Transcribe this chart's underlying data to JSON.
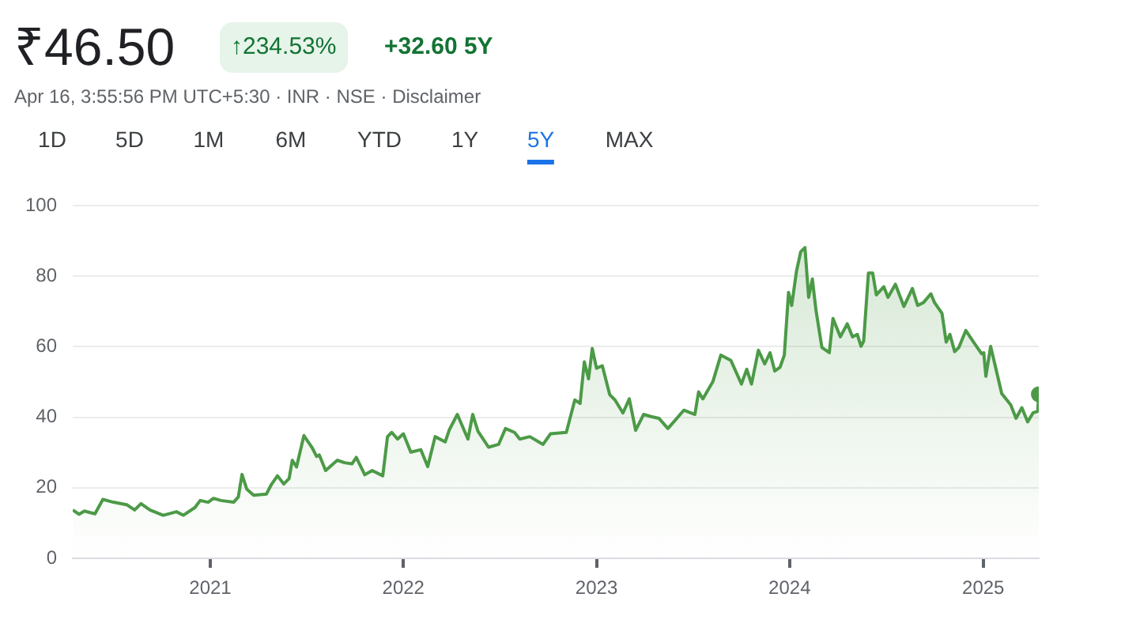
{
  "chart_data": {
    "type": "area",
    "title": "₹46.50",
    "subtitle": "Apr 16, 3:55:56 PM UTC+5:30 · INR · NSE · Disclaimer",
    "annotations": [
      "↑234.53%",
      "+32.60 5Y",
      "1D",
      "5D",
      "1M",
      "6M",
      "YTD",
      "1Y",
      "5Y",
      "MAX"
    ],
    "x": [
      "2020-04-16",
      "2020-04-28",
      "2020-05-08",
      "2020-05-28",
      "2020-06-12",
      "2020-07-02",
      "2020-07-27",
      "2020-08-11",
      "2020-08-23",
      "2020-09-09",
      "2020-10-04",
      "2020-10-29",
      "2020-11-11",
      "2020-12-03",
      "2020-12-13",
      "2020-12-28",
      "2021-01-07",
      "2021-01-21",
      "2021-02-14",
      "2021-02-23",
      "2021-03-02",
      "2021-03-11",
      "2021-03-24",
      "2021-04-17",
      "2021-04-26",
      "2021-05-08",
      "2021-05-20",
      "2021-05-30",
      "2021-06-05",
      "2021-06-13",
      "2021-06-27",
      "2021-07-12",
      "2021-07-21",
      "2021-07-26",
      "2021-08-07",
      "2021-08-29",
      "2021-09-12",
      "2021-09-26",
      "2021-10-04",
      "2021-10-20",
      "2021-11-03",
      "2021-11-23",
      "2021-12-02",
      "2021-12-10",
      "2021-12-21",
      "2022-01-01",
      "2022-01-15",
      "2022-02-03",
      "2022-02-16",
      "2022-03-02",
      "2022-03-21",
      "2022-03-29",
      "2022-04-13",
      "2022-05-03",
      "2022-05-12",
      "2022-05-22",
      "2022-06-11",
      "2022-06-30",
      "2022-07-13",
      "2022-07-30",
      "2022-08-09",
      "2022-08-28",
      "2022-09-22",
      "2022-10-06",
      "2022-11-05",
      "2022-11-21",
      "2022-12-01",
      "2022-12-09",
      "2022-12-17",
      "2022-12-24",
      "2023-01-01",
      "2023-01-12",
      "2023-01-26",
      "2023-02-05",
      "2023-02-20",
      "2023-03-04",
      "2023-03-16",
      "2023-03-31",
      "2023-04-14",
      "2023-04-29",
      "2023-05-16",
      "2023-06-02",
      "2023-06-15",
      "2023-07-06",
      "2023-07-13",
      "2023-07-21",
      "2023-08-09",
      "2023-08-24",
      "2023-09-12",
      "2023-10-02",
      "2023-10-12",
      "2023-10-21",
      "2023-11-03",
      "2023-11-15",
      "2023-11-25",
      "2023-12-04",
      "2023-12-14",
      "2023-12-22",
      "2023-12-30",
      "2024-01-05",
      "2024-01-14",
      "2024-01-22",
      "2024-01-30",
      "2024-02-06",
      "2024-02-13",
      "2024-02-20",
      "2024-03-02",
      "2024-03-16",
      "2024-03-23",
      "2024-04-06",
      "2024-04-19",
      "2024-04-29",
      "2024-05-08",
      "2024-05-15",
      "2024-05-20",
      "2024-05-29",
      "2024-06-06",
      "2024-06-13",
      "2024-06-27",
      "2024-07-05",
      "2024-07-19",
      "2024-08-04",
      "2024-08-20",
      "2024-08-30",
      "2024-09-10",
      "2024-09-24",
      "2024-10-01",
      "2024-10-15",
      "2024-10-23",
      "2024-10-30",
      "2024-11-08",
      "2024-11-16",
      "2024-11-29",
      "2024-12-15",
      "2024-12-29",
      "2025-01-02",
      "2025-01-06",
      "2025-01-15",
      "2025-01-26",
      "2025-02-05",
      "2025-02-22",
      "2025-03-04",
      "2025-03-15",
      "2025-03-26",
      "2025-04-05",
      "2025-04-14",
      "2025-04-16"
    ],
    "series": [
      {
        "color": "#4c9a47",
        "values": [
          13.7,
          12.5,
          13.4,
          12.6,
          16.7,
          15.9,
          15.2,
          13.7,
          15.5,
          13.7,
          12.2,
          13.2,
          12.2,
          14.4,
          16.4,
          15.9,
          17.0,
          16.4,
          15.9,
          17.4,
          23.8,
          19.6,
          17.9,
          18.2,
          20.8,
          23.4,
          21.1,
          22.6,
          27.8,
          25.9,
          34.8,
          31.5,
          28.9,
          29.3,
          24.9,
          27.8,
          27.1,
          26.8,
          28.6,
          23.7,
          24.9,
          23.4,
          34.5,
          35.7,
          33.8,
          35.3,
          30.1,
          30.8,
          26.0,
          34.5,
          33.0,
          36.5,
          40.8,
          33.8,
          40.8,
          36.0,
          31.5,
          32.3,
          36.8,
          35.7,
          33.8,
          34.5,
          32.3,
          35.3,
          35.7,
          44.9,
          43.9,
          55.7,
          50.9,
          59.5,
          53.9,
          54.6,
          46.4,
          44.9,
          41.2,
          45.2,
          36.3,
          40.8,
          40.2,
          39.7,
          36.8,
          39.7,
          42.0,
          40.8,
          47.2,
          45.2,
          50.1,
          57.6,
          56.1,
          49.4,
          53.6,
          49.4,
          59.0,
          55.1,
          58.3,
          53.1,
          54.2,
          57.6,
          75.4,
          71.7,
          81.4,
          86.9,
          88.1,
          74.0,
          79.2,
          70.2,
          59.8,
          58.3,
          68.0,
          62.8,
          66.5,
          62.8,
          63.5,
          60.1,
          61.6,
          80.9,
          80.9,
          74.7,
          77.0,
          74.0,
          77.7,
          71.4,
          76.5,
          71.7,
          72.5,
          75.0,
          72.5,
          69.5,
          61.3,
          63.5,
          58.6,
          59.8,
          64.6,
          61.0,
          58.0,
          58.3,
          51.6,
          60.1,
          53.1,
          46.7,
          43.5,
          39.7,
          42.7,
          38.7,
          41.2,
          41.7,
          46.5
        ]
      }
    ],
    "xlim": [
      "2020-04-16",
      "2025-04-16"
    ],
    "xticks": [
      "2021",
      "2022",
      "2023",
      "2024",
      "2025"
    ],
    "ylim": [
      0,
      100
    ],
    "yticks": [
      0,
      20,
      40,
      60,
      80,
      100
    ],
    "grid": "y",
    "legend": false,
    "marker": "none"
  }
}
